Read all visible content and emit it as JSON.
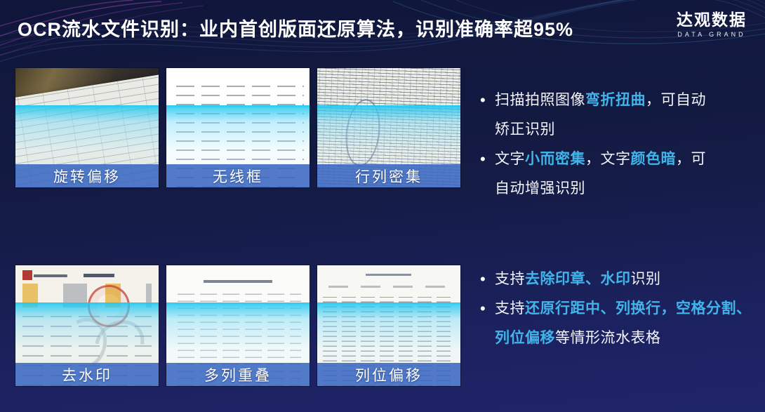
{
  "title": "OCR流水文件识别：业内首创版面还原算法，识别准确率超95%",
  "logo": {
    "name": "达观数据",
    "tagline": "DATA GRAND"
  },
  "tiles": [
    {
      "label": "旋转偏移"
    },
    {
      "label": "无线框"
    },
    {
      "label": "行列密集"
    },
    {
      "label": "去水印"
    },
    {
      "label": "多列重叠"
    },
    {
      "label": "列位偏移"
    }
  ],
  "features_top": [
    {
      "segments": [
        {
          "t": "扫描拍照图像"
        },
        {
          "t": "弯折扭曲",
          "hl": true
        },
        {
          "t": "，可自动",
          "br": true
        },
        {
          "t": "矫正识别"
        }
      ]
    },
    {
      "segments": [
        {
          "t": "文字"
        },
        {
          "t": "小而密集",
          "hl": true
        },
        {
          "t": "，文字"
        },
        {
          "t": "颜色暗",
          "hl": true
        },
        {
          "t": "，可",
          "br": true
        },
        {
          "t": "自动增强识别"
        }
      ]
    }
  ],
  "features_bottom": [
    {
      "segments": [
        {
          "t": "支持"
        },
        {
          "t": "去除印章、水印",
          "hl": true
        },
        {
          "t": "识别"
        }
      ]
    },
    {
      "segments": [
        {
          "t": "支持"
        },
        {
          "t": "还原行距中、列换行，空格分割、",
          "hl": true,
          "br": true
        },
        {
          "t": "列位偏移",
          "hl": true
        },
        {
          "t": "等情形流水表格"
        }
      ]
    }
  ],
  "colors": {
    "accent_cyan": "#41b4e9",
    "label_bar_blue": "rgba(58,104,193,0.88)",
    "scan_line_cyan": "#25c8f0",
    "background_top": "#10163a",
    "background_bottom": "#1e2468"
  }
}
